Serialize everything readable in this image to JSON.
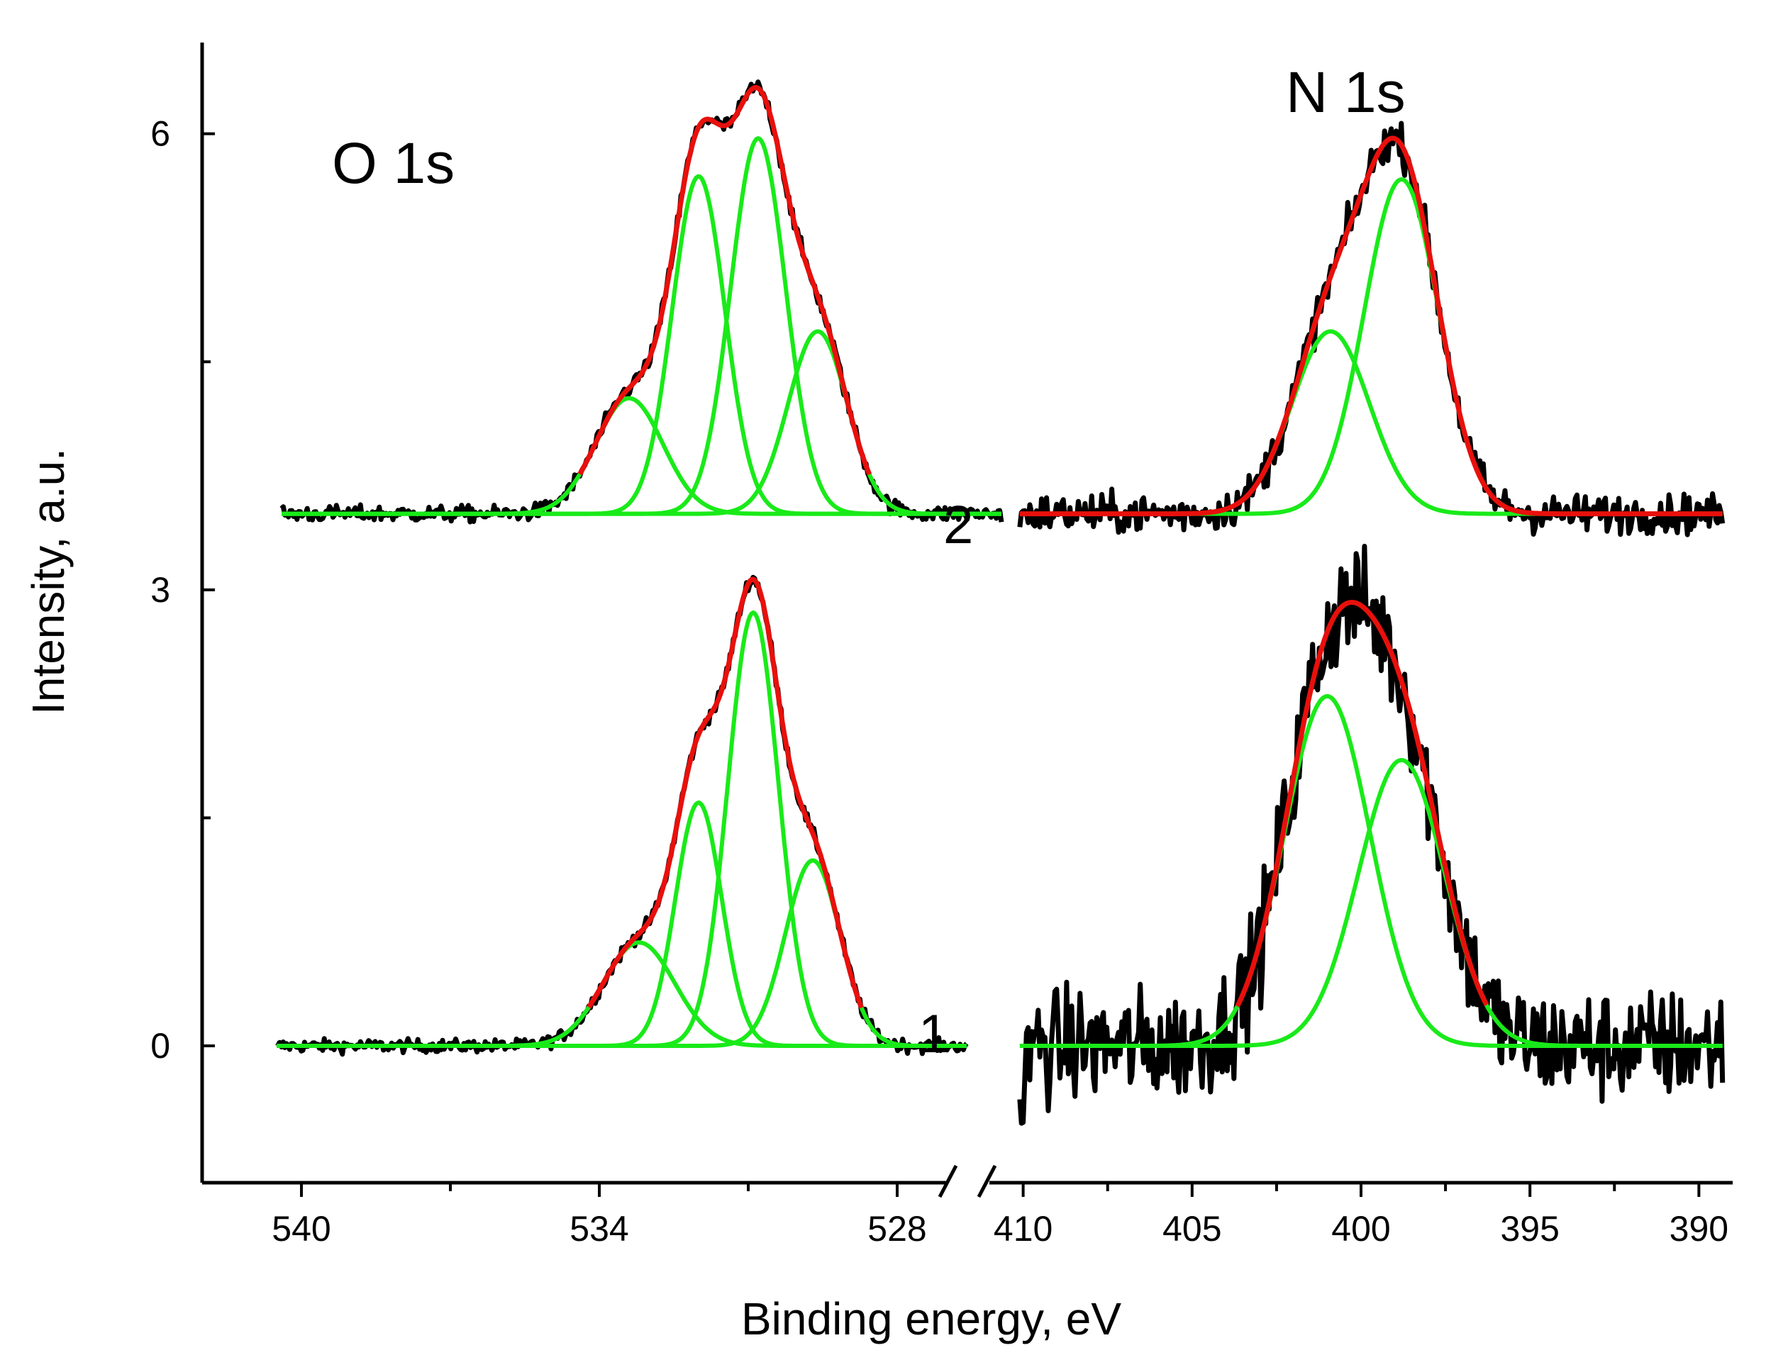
{
  "chart_data": {
    "type": "line",
    "xlabel": "Binding energy, eV",
    "ylabel": "Intensity, a.u.",
    "ylim": [
      -0.9,
      6.6
    ],
    "yticks": [
      0,
      3,
      6
    ],
    "colors": {
      "raw": "#000000",
      "component": "#19ea19",
      "envelope": "#e8100c"
    },
    "panels": [
      {
        "name": "O 1s",
        "title": "O 1s",
        "xlim": [
          542,
          527
        ],
        "xticks": [
          540,
          534,
          528
        ],
        "spectra": [
          {
            "label": "",
            "offset": 0,
            "xrange": [
              540.5,
              526.6
            ],
            "background": "flat",
            "components": [
              {
                "center": 533.2,
                "amplitude": 0.68,
                "fwhm": 1.7
              },
              {
                "center": 532.0,
                "amplitude": 1.6,
                "fwhm": 1.1
              },
              {
                "center": 530.9,
                "amplitude": 2.85,
                "fwhm": 1.2
              },
              {
                "center": 529.7,
                "amplitude": 1.22,
                "fwhm": 1.3
              }
            ],
            "noise": 0.04
          },
          {
            "label": "",
            "offset": 3.5,
            "xrange": [
              540.4,
              525.9
            ],
            "background": "flat",
            "components": [
              {
                "center": 533.4,
                "amplitude": 0.76,
                "fwhm": 1.6
              },
              {
                "center": 532.0,
                "amplitude": 2.22,
                "fwhm": 1.25
              },
              {
                "center": 530.8,
                "amplitude": 2.47,
                "fwhm": 1.3
              },
              {
                "center": 529.6,
                "amplitude": 1.2,
                "fwhm": 1.4
              }
            ],
            "noise": 0.05
          }
        ]
      },
      {
        "name": "N 1s",
        "title": "N 1s",
        "xlim": [
          411,
          389
        ],
        "xticks": [
          410,
          405,
          400,
          395,
          390
        ],
        "spectra": [
          {
            "label": "1",
            "offset": 0,
            "xrange": [
              410.1,
              389.3
            ],
            "components": [
              {
                "center": 401.0,
                "amplitude": 2.3,
                "fwhm": 3.0
              },
              {
                "center": 398.8,
                "amplitude": 1.88,
                "fwhm": 3.0
              }
            ],
            "noise": 0.35
          },
          {
            "label": "2",
            "offset": 3.5,
            "xrange": [
              410.1,
              389.3
            ],
            "components": [
              {
                "center": 400.9,
                "amplitude": 1.2,
                "fwhm": 2.7
              },
              {
                "center": 398.8,
                "amplitude": 2.2,
                "fwhm": 2.6
              }
            ],
            "noise": 0.12
          }
        ]
      }
    ]
  }
}
